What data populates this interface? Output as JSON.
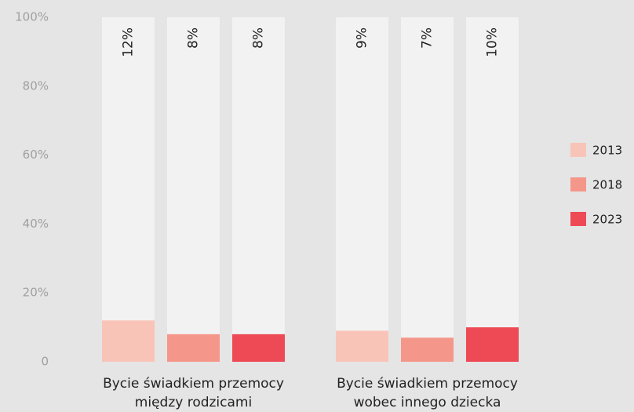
{
  "chart_data": {
    "type": "bar",
    "categories": [
      "Bycie świadkiem przemocy między rodzicami",
      "Bycie świadkiem przemocy wobec innego dziecka"
    ],
    "series": [
      {
        "name": "2013",
        "color": "#f9c4b8",
        "values": [
          12,
          9
        ],
        "value_labels": [
          "12%",
          "9%"
        ]
      },
      {
        "name": "2018",
        "color": "#f4978a",
        "values": [
          8,
          7
        ],
        "value_labels": [
          "8%",
          "7%"
        ]
      },
      {
        "name": "2023",
        "color": "#ee4a55",
        "values": [
          8,
          10
        ],
        "value_labels": [
          "8%",
          "10%"
        ]
      }
    ],
    "ylim": [
      0,
      100
    ],
    "yticks": [
      0,
      {
        "value": 20,
        "label": "20%"
      },
      {
        "value": 40,
        "label": "40%"
      },
      {
        "value": 60,
        "label": "60%"
      },
      {
        "value": 80,
        "label": "80%"
      },
      {
        "value": 100,
        "label": "100%"
      }
    ],
    "legend": "right"
  }
}
